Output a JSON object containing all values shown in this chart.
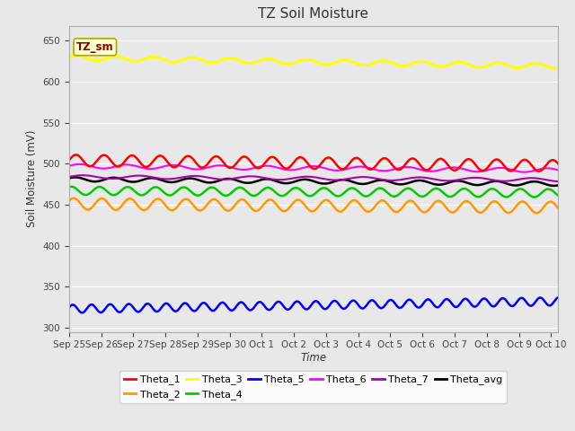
{
  "title": "TZ Soil Moisture",
  "xlabel": "Time",
  "ylabel": "Soil Moisture (mV)",
  "ylim": [
    295,
    668
  ],
  "yticks": [
    300,
    350,
    400,
    450,
    500,
    550,
    600,
    650
  ],
  "bg_color": "#e8e8e8",
  "legend_box_text": "TZ_sm",
  "legend_box_color": "#ffffcc",
  "legend_box_border": "#aaa800",
  "legend_box_text_color": "#880000",
  "n_points": 370,
  "series": {
    "Theta_1": {
      "color": "#ff0000",
      "base": 504,
      "amplitude": 7,
      "trend": -0.018,
      "freq": 0.3,
      "phase": 0.0,
      "lw": 1.8
    },
    "Theta_2": {
      "color": "#ff9900",
      "base": 451,
      "amplitude": 7,
      "trend": -0.012,
      "freq": 0.3,
      "phase": 0.5,
      "lw": 1.8
    },
    "Theta_3": {
      "color": "#ffff00",
      "base": 629,
      "amplitude": 3,
      "trend": -0.028,
      "freq": 0.22,
      "phase": 0.2,
      "lw": 2.2
    },
    "Theta_4": {
      "color": "#00cc00",
      "base": 467,
      "amplitude": 5,
      "trend": -0.008,
      "freq": 0.3,
      "phase": 1.0,
      "lw": 1.8
    },
    "Theta_5": {
      "color": "#0000ff",
      "base": 323,
      "amplitude": 5,
      "trend": 0.025,
      "freq": 0.45,
      "phase": 0.3,
      "lw": 1.8
    },
    "Theta_6": {
      "color": "#ff00ff",
      "base": 497,
      "amplitude": 2.5,
      "trend": -0.014,
      "freq": 0.18,
      "phase": 0.1,
      "lw": 1.5
    },
    "Theta_7": {
      "color": "#aa00aa",
      "base": 484,
      "amplitude": 2,
      "trend": -0.01,
      "freq": 0.15,
      "phase": 0.0,
      "lw": 1.5
    },
    "Theta_avg": {
      "color": "#000000",
      "base": 481,
      "amplitude": 2.5,
      "trend": -0.015,
      "freq": 0.22,
      "phase": 0.5,
      "lw": 1.8
    }
  },
  "x_tick_labels": [
    "Sep 25",
    "Sep 26",
    "Sep 27",
    "Sep 28",
    "Sep 29",
    "Sep 30",
    "Oct 1",
    "Oct 2",
    "Oct 3",
    "Oct 4",
    "Oct 5",
    "Oct 6",
    "Oct 7",
    "Oct 8",
    "Oct 9",
    "Oct 10"
  ],
  "x_tick_positions": [
    0,
    24,
    48,
    72,
    96,
    120,
    144,
    168,
    192,
    216,
    240,
    264,
    288,
    312,
    336,
    360
  ],
  "legend_row1": [
    "Theta_1",
    "Theta_2",
    "Theta_3",
    "Theta_4",
    "Theta_5",
    "Theta_6"
  ],
  "legend_row2": [
    "Theta_7",
    "Theta_avg"
  ]
}
